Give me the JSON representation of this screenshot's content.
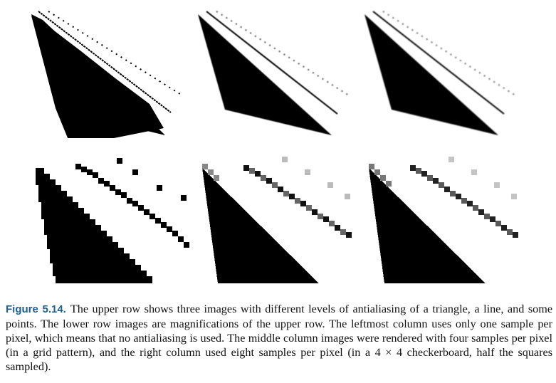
{
  "figure": {
    "label": "Figure 5.14.",
    "caption": "The upper row shows three images with different levels of antialiasing of a triangle, a line, and some points. The lower row images are magnifications of the upper row. The leftmost column uses only one sample per pixel, which means that no antialiasing is used. The middle column images were rendered with four samples per pixel (in a grid pattern), and the right column used eight samples per pixel (in a 4 × 4 checkerboard, half the squares sampled).",
    "label_color": "#1f5f8f"
  },
  "panels": [
    {
      "row": "upper",
      "samples_per_pixel": 1
    },
    {
      "row": "upper",
      "samples_per_pixel": 4
    },
    {
      "row": "upper",
      "samples_per_pixel": 8
    },
    {
      "row": "lower",
      "samples_per_pixel": 1
    },
    {
      "row": "lower",
      "samples_per_pixel": 4
    },
    {
      "row": "lower",
      "samples_per_pixel": 8
    }
  ]
}
